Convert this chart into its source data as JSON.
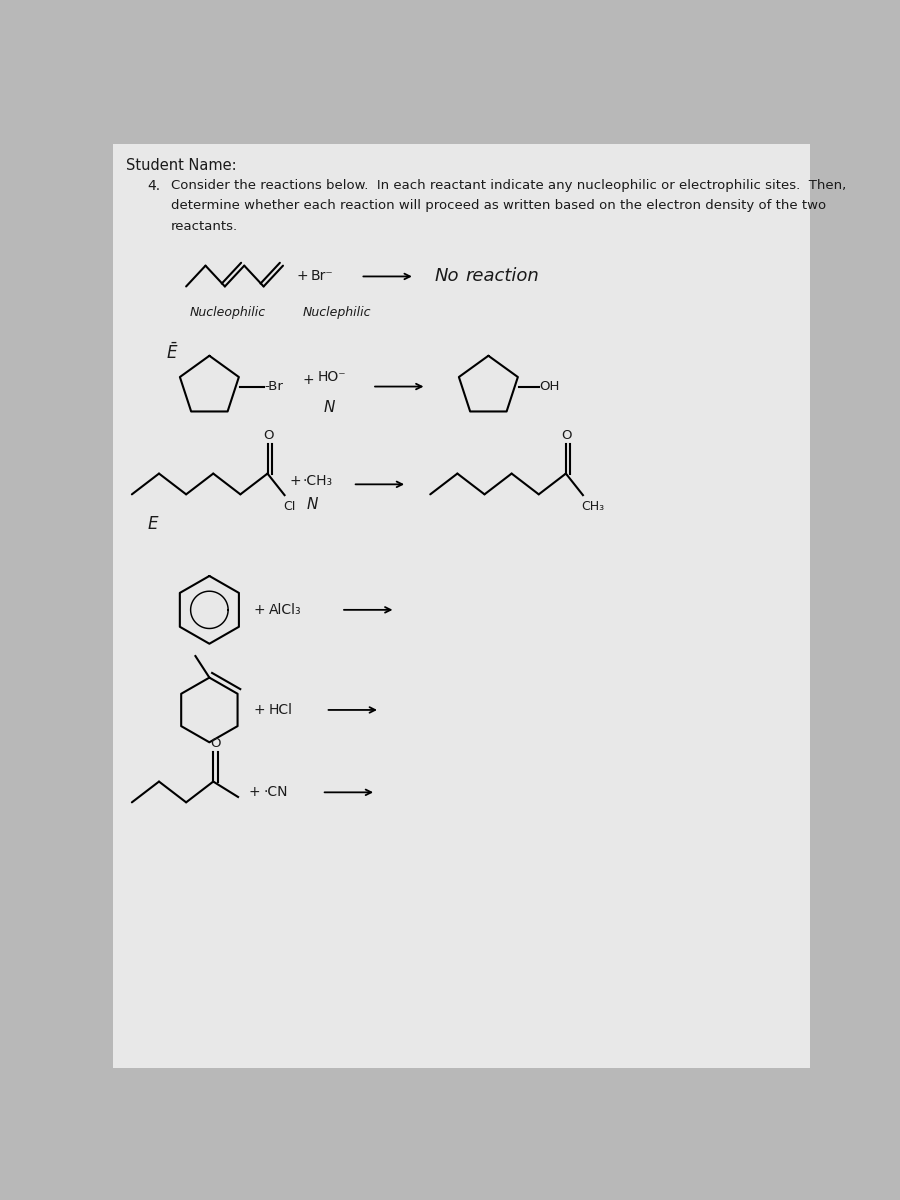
{
  "bg_color": "#b8b8b8",
  "paper_color": "#e8e8e8",
  "text_color": "#1a1a1a",
  "title": "Student Name:",
  "q_number": "4.",
  "q_text_line1": "Consider the reactions below.  In each reactant indicate any nucleophilic or electrophilic sites.  Then,",
  "q_text_line2": "determine whether each reaction will proceed as written based on the electron density of the two",
  "q_text_line3": "reactants.",
  "reaction1_result": "No  reaction",
  "annot_nucleophilic": "Nucleophilic",
  "annot_nuclephilic2": "Nuclephilic",
  "annot_E_bar": "Ē",
  "annot_N": "N",
  "annot_OH": "OH",
  "annot_E": "E",
  "annot_Cl": "CI",
  "annot_CH3": "CH₃",
  "annot_O": "O",
  "lw_mol": 1.5
}
